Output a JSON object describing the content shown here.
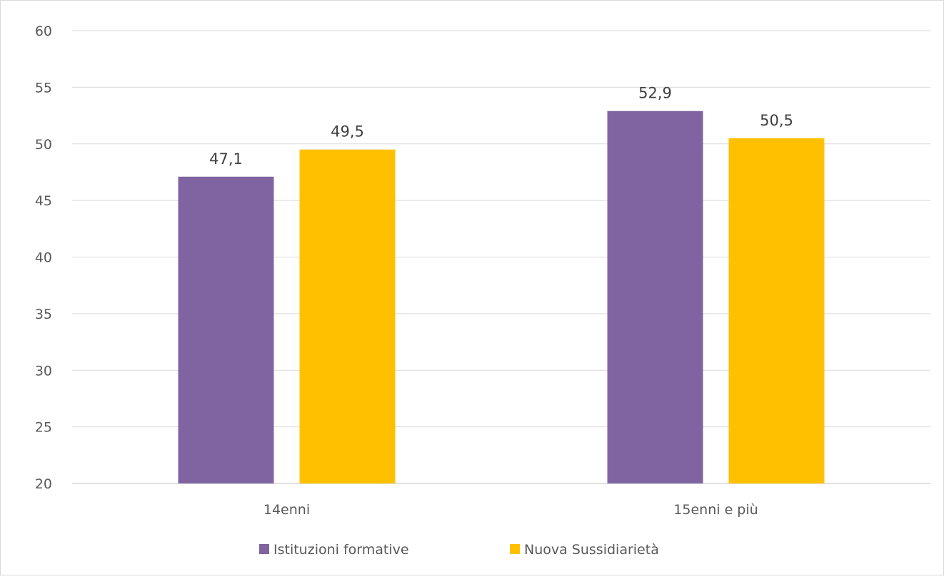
{
  "chart_data": {
    "type": "bar",
    "categories": [
      "14enni",
      "15enni e più"
    ],
    "series": [
      {
        "name": "Istituzioni formative",
        "values": [
          47.1,
          52.9
        ],
        "labels": [
          "47,1",
          "52,9"
        ],
        "color": "#8064a2"
      },
      {
        "name": "Nuova Sussidiarietà",
        "values": [
          49.5,
          50.5
        ],
        "labels": [
          "49,5",
          "50,5"
        ],
        "color": "#ffc000"
      }
    ],
    "ylim": [
      20,
      60
    ],
    "yticks": [
      "20",
      "25",
      "30",
      "35",
      "40",
      "45",
      "50",
      "55",
      "60"
    ],
    "grid": true,
    "legend_position": "bottom"
  }
}
